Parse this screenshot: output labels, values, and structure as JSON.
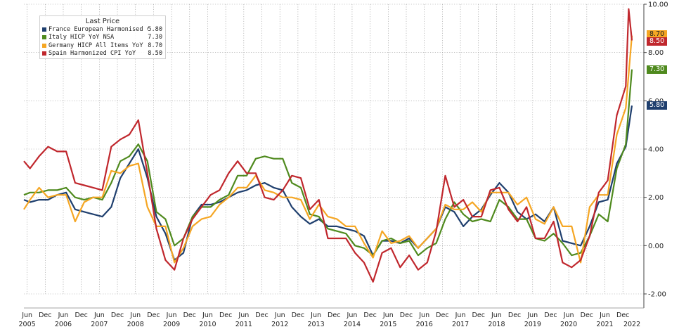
{
  "chart_data": {
    "type": "line",
    "title": "",
    "xlabel": "",
    "ylabel": "",
    "ylim": [
      -2.0,
      10.0
    ],
    "y_ticks": [
      "10.00",
      "8.00",
      "6.00",
      "4.00",
      "2.00",
      "0.00",
      "-2.00"
    ],
    "y_tick_values": [
      10,
      8,
      6,
      4,
      2,
      0,
      -2
    ],
    "grid": "on (dotted)",
    "legend_position": "top-left",
    "legend_title": "Last Price",
    "x_range": [
      2005.33,
      2022.5
    ],
    "x_month_labels": [
      {
        "t": 2005.42,
        "label": "Jun"
      },
      {
        "t": 2005.92,
        "label": "Dec"
      },
      {
        "t": 2006.42,
        "label": "Jun"
      },
      {
        "t": 2006.92,
        "label": "Dec"
      },
      {
        "t": 2007.42,
        "label": "Jun"
      },
      {
        "t": 2007.92,
        "label": "Dec"
      },
      {
        "t": 2008.42,
        "label": "Jun"
      },
      {
        "t": 2008.92,
        "label": "Dec"
      },
      {
        "t": 2009.42,
        "label": "Jun"
      },
      {
        "t": 2009.92,
        "label": "Dec"
      },
      {
        "t": 2010.42,
        "label": "Jun"
      },
      {
        "t": 2010.92,
        "label": "Dec"
      },
      {
        "t": 2011.42,
        "label": "Jun"
      },
      {
        "t": 2011.92,
        "label": "Dec"
      },
      {
        "t": 2012.42,
        "label": "Jun"
      },
      {
        "t": 2012.92,
        "label": "Dec"
      },
      {
        "t": 2013.42,
        "label": "Jun"
      },
      {
        "t": 2013.92,
        "label": "Dec"
      },
      {
        "t": 2014.42,
        "label": "Jun"
      },
      {
        "t": 2014.92,
        "label": "Dec"
      },
      {
        "t": 2015.42,
        "label": "Jun"
      },
      {
        "t": 2015.92,
        "label": "Dec"
      },
      {
        "t": 2016.42,
        "label": "Jun"
      },
      {
        "t": 2016.92,
        "label": "Dec"
      },
      {
        "t": 2017.42,
        "label": "Jun"
      },
      {
        "t": 2017.92,
        "label": "Dec"
      },
      {
        "t": 2018.42,
        "label": "Jun"
      },
      {
        "t": 2018.92,
        "label": "Dec"
      },
      {
        "t": 2019.42,
        "label": "Jun"
      },
      {
        "t": 2019.92,
        "label": "Dec"
      },
      {
        "t": 2020.42,
        "label": "Jun"
      },
      {
        "t": 2020.92,
        "label": "Dec"
      },
      {
        "t": 2021.42,
        "label": "Jun"
      },
      {
        "t": 2021.92,
        "label": "Dec"
      }
    ],
    "x_year_labels": [
      {
        "t": 2005.42,
        "label": "2005"
      },
      {
        "t": 2006.42,
        "label": "2006"
      },
      {
        "t": 2007.42,
        "label": "2007"
      },
      {
        "t": 2008.42,
        "label": "2008"
      },
      {
        "t": 2009.42,
        "label": "2009"
      },
      {
        "t": 2010.42,
        "label": "2010"
      },
      {
        "t": 2011.42,
        "label": "2011"
      },
      {
        "t": 2012.42,
        "label": "2012"
      },
      {
        "t": 2013.42,
        "label": "2013"
      },
      {
        "t": 2014.42,
        "label": "2014"
      },
      {
        "t": 2015.42,
        "label": "2015"
      },
      {
        "t": 2016.42,
        "label": "2016"
      },
      {
        "t": 2017.42,
        "label": "2017"
      },
      {
        "t": 2018.42,
        "label": "2018"
      },
      {
        "t": 2019.42,
        "label": "2019"
      },
      {
        "t": 2020.42,
        "label": "2020"
      },
      {
        "t": 2021.42,
        "label": "2021"
      },
      {
        "t": 2022.17,
        "label": "2022"
      }
    ],
    "series": [
      {
        "name": "France European Harmonised CPI YoY",
        "last": "5.80",
        "color": "#1f3f6e",
        "x": [
          2005.33,
          2005.5,
          2005.75,
          2006.0,
          2006.25,
          2006.5,
          2006.75,
          2007.0,
          2007.25,
          2007.5,
          2007.75,
          2008.0,
          2008.25,
          2008.5,
          2008.75,
          2009.0,
          2009.25,
          2009.5,
          2009.75,
          2010.0,
          2010.25,
          2010.5,
          2010.75,
          2011.0,
          2011.25,
          2011.5,
          2011.75,
          2012.0,
          2012.25,
          2012.5,
          2012.75,
          2013.0,
          2013.25,
          2013.5,
          2013.75,
          2014.0,
          2014.25,
          2014.5,
          2014.75,
          2015.0,
          2015.25,
          2015.5,
          2015.75,
          2016.0,
          2016.25,
          2016.5,
          2016.75,
          2017.0,
          2017.25,
          2017.5,
          2017.75,
          2018.0,
          2018.25,
          2018.5,
          2018.75,
          2019.0,
          2019.25,
          2019.5,
          2019.75,
          2020.0,
          2020.25,
          2020.5,
          2020.75,
          2021.0,
          2021.25,
          2021.5,
          2021.75,
          2022.0,
          2022.17
        ],
        "y": [
          1.9,
          1.8,
          1.9,
          1.9,
          2.1,
          2.2,
          1.5,
          1.4,
          1.3,
          1.2,
          1.6,
          2.8,
          3.4,
          4.0,
          2.8,
          1.2,
          0.5,
          -0.6,
          -0.3,
          1.2,
          1.7,
          1.7,
          1.8,
          2.0,
          2.2,
          2.3,
          2.5,
          2.6,
          2.4,
          2.3,
          1.6,
          1.2,
          0.9,
          1.1,
          0.8,
          0.8,
          0.7,
          0.6,
          0.4,
          -0.4,
          0.2,
          0.2,
          0.1,
          0.3,
          -0.1,
          0.3,
          0.7,
          1.6,
          1.4,
          0.8,
          1.2,
          1.5,
          2.1,
          2.6,
          2.2,
          1.4,
          1.1,
          1.3,
          1.0,
          1.6,
          0.2,
          0.1,
          0.0,
          0.8,
          1.8,
          1.9,
          3.4,
          4.1,
          5.8
        ]
      },
      {
        "name": "Italy HICP YoY NSA",
        "last": "7.30",
        "color": "#4f8a1e",
        "x": [
          2005.33,
          2005.5,
          2005.75,
          2006.0,
          2006.25,
          2006.5,
          2006.75,
          2007.0,
          2007.25,
          2007.5,
          2007.75,
          2008.0,
          2008.25,
          2008.5,
          2008.75,
          2009.0,
          2009.25,
          2009.5,
          2009.75,
          2010.0,
          2010.25,
          2010.5,
          2010.75,
          2011.0,
          2011.25,
          2011.5,
          2011.75,
          2012.0,
          2012.25,
          2012.5,
          2012.75,
          2013.0,
          2013.25,
          2013.5,
          2013.75,
          2014.0,
          2014.25,
          2014.5,
          2014.75,
          2015.0,
          2015.25,
          2015.5,
          2015.75,
          2016.0,
          2016.25,
          2016.5,
          2016.75,
          2017.0,
          2017.25,
          2017.5,
          2017.75,
          2018.0,
          2018.25,
          2018.5,
          2018.75,
          2019.0,
          2019.25,
          2019.5,
          2019.75,
          2020.0,
          2020.25,
          2020.5,
          2020.75,
          2021.0,
          2021.25,
          2021.5,
          2021.75,
          2022.0,
          2022.17
        ],
        "y": [
          2.1,
          2.2,
          2.2,
          2.3,
          2.3,
          2.4,
          2.0,
          1.9,
          2.0,
          1.9,
          2.6,
          3.5,
          3.7,
          4.2,
          3.5,
          1.4,
          1.1,
          0.0,
          0.3,
          1.2,
          1.6,
          1.6,
          1.9,
          2.1,
          2.9,
          2.9,
          3.6,
          3.7,
          3.6,
          3.6,
          2.6,
          2.4,
          1.3,
          1.2,
          0.7,
          0.6,
          0.5,
          0.0,
          -0.1,
          -0.4,
          0.2,
          0.3,
          0.1,
          0.2,
          -0.4,
          -0.1,
          0.1,
          1.1,
          1.8,
          1.3,
          1.0,
          1.1,
          1.0,
          1.9,
          1.6,
          1.1,
          1.1,
          0.3,
          0.2,
          0.5,
          0.1,
          -0.4,
          -0.3,
          0.4,
          1.3,
          1.0,
          3.2,
          4.2,
          7.3
        ]
      },
      {
        "name": "Germany HICP All Items YoY",
        "last": "8.70",
        "color": "#f5a623",
        "x": [
          2005.33,
          2005.5,
          2005.75,
          2006.0,
          2006.25,
          2006.5,
          2006.75,
          2007.0,
          2007.25,
          2007.5,
          2007.75,
          2008.0,
          2008.25,
          2008.5,
          2008.75,
          2009.0,
          2009.25,
          2009.5,
          2009.75,
          2010.0,
          2010.25,
          2010.5,
          2010.75,
          2011.0,
          2011.25,
          2011.5,
          2011.75,
          2012.0,
          2012.25,
          2012.5,
          2012.75,
          2013.0,
          2013.25,
          2013.5,
          2013.75,
          2014.0,
          2014.25,
          2014.5,
          2014.75,
          2015.0,
          2015.25,
          2015.5,
          2015.75,
          2016.0,
          2016.25,
          2016.5,
          2016.75,
          2017.0,
          2017.25,
          2017.5,
          2017.75,
          2018.0,
          2018.25,
          2018.5,
          2018.75,
          2019.0,
          2019.25,
          2019.5,
          2019.75,
          2020.0,
          2020.25,
          2020.5,
          2020.75,
          2021.0,
          2021.25,
          2021.5,
          2021.75,
          2022.0,
          2022.17
        ],
        "y": [
          1.5,
          1.9,
          2.4,
          2.0,
          2.1,
          2.1,
          1.0,
          1.8,
          2.0,
          2.0,
          3.1,
          3.0,
          3.3,
          3.4,
          1.6,
          0.8,
          0.8,
          -0.7,
          -0.1,
          0.8,
          1.1,
          1.2,
          1.7,
          2.0,
          2.4,
          2.4,
          2.9,
          2.3,
          2.2,
          2.0,
          2.0,
          1.9,
          1.1,
          1.7,
          1.2,
          1.1,
          0.8,
          0.8,
          0.1,
          -0.5,
          0.6,
          0.1,
          0.2,
          0.4,
          -0.1,
          0.3,
          0.7,
          1.7,
          1.5,
          1.5,
          1.8,
          1.4,
          2.2,
          2.2,
          2.2,
          1.7,
          2.0,
          1.1,
          0.9,
          1.6,
          0.8,
          0.8,
          -0.7,
          1.6,
          2.1,
          2.1,
          4.6,
          5.7,
          8.7
        ]
      },
      {
        "name": "Spain Harmonized CPI YoY",
        "last": "8.50",
        "color": "#c0272d",
        "x": [
          2005.33,
          2005.5,
          2005.75,
          2006.0,
          2006.25,
          2006.5,
          2006.75,
          2007.0,
          2007.25,
          2007.5,
          2007.75,
          2008.0,
          2008.25,
          2008.5,
          2008.75,
          2009.0,
          2009.25,
          2009.5,
          2009.75,
          2010.0,
          2010.25,
          2010.5,
          2010.75,
          2011.0,
          2011.25,
          2011.5,
          2011.75,
          2012.0,
          2012.25,
          2012.5,
          2012.75,
          2013.0,
          2013.25,
          2013.5,
          2013.75,
          2014.0,
          2014.25,
          2014.5,
          2014.75,
          2015.0,
          2015.25,
          2015.5,
          2015.75,
          2016.0,
          2016.25,
          2016.5,
          2016.75,
          2017.0,
          2017.25,
          2017.5,
          2017.75,
          2018.0,
          2018.25,
          2018.5,
          2018.75,
          2019.0,
          2019.25,
          2019.5,
          2019.75,
          2020.0,
          2020.25,
          2020.5,
          2020.75,
          2021.0,
          2021.25,
          2021.5,
          2021.75,
          2022.0,
          2022.08,
          2022.17
        ],
        "y": [
          3.5,
          3.2,
          3.7,
          4.1,
          3.9,
          3.9,
          2.6,
          2.5,
          2.4,
          2.3,
          4.1,
          4.4,
          4.6,
          5.2,
          3.0,
          0.7,
          -0.6,
          -1.0,
          0.3,
          1.1,
          1.6,
          2.1,
          2.3,
          3.0,
          3.5,
          3.0,
          3.0,
          2.0,
          1.9,
          2.3,
          2.9,
          2.8,
          1.5,
          1.9,
          0.3,
          0.3,
          0.3,
          -0.3,
          -0.7,
          -1.5,
          -0.3,
          -0.1,
          -0.9,
          -0.4,
          -1.0,
          -0.7,
          0.6,
          2.9,
          1.6,
          1.9,
          1.2,
          1.2,
          2.3,
          2.4,
          1.5,
          1.0,
          1.6,
          0.3,
          0.3,
          1.0,
          -0.7,
          -0.9,
          -0.6,
          0.4,
          2.2,
          2.7,
          5.4,
          6.6,
          9.8,
          8.5
        ]
      }
    ]
  },
  "tag_colors": {
    "France": "#1f3f6e",
    "Italy": "#4f8a1e",
    "Germany": "#f5a623",
    "Spain": "#c0272d"
  }
}
